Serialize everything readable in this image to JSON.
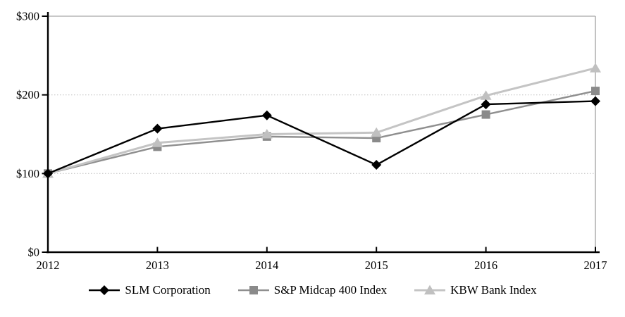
{
  "chart_data": {
    "type": "line",
    "title": "",
    "categories": [
      "2012",
      "2013",
      "2014",
      "2015",
      "2016",
      "2017"
    ],
    "series": [
      {
        "name": "SLM Corporation",
        "marker": "diamond",
        "line_color": "#000000",
        "marker_color": "#000000",
        "line_width": 2.4,
        "values": [
          100,
          157,
          174,
          111,
          188,
          192
        ]
      },
      {
        "name": "S&P Midcap 400 Index",
        "marker": "square",
        "line_color": "#8f8f8f",
        "marker_color": "#8a8a8a",
        "line_width": 2.4,
        "values": [
          100,
          134,
          147,
          145,
          175,
          205
        ]
      },
      {
        "name": "KBW Bank Index",
        "marker": "triangle",
        "line_color": "#c4c4c4",
        "marker_color": "#c0c0c0",
        "line_width": 3,
        "values": [
          100,
          139,
          150,
          152,
          199,
          234
        ]
      }
    ],
    "draw_order": [
      1,
      2,
      0
    ],
    "y_axis": {
      "min": 0,
      "max": 300,
      "ticks": [
        {
          "value": 0,
          "label": "$0"
        },
        {
          "value": 100,
          "label": "$100"
        },
        {
          "value": 200,
          "label": "$200"
        },
        {
          "value": 300,
          "label": "$300"
        }
      ]
    },
    "x_axis": {
      "labels": [
        "2012",
        "2013",
        "2014",
        "2015",
        "2016",
        "2017"
      ]
    },
    "grid": "horizontal-dotted",
    "legend_position": "bottom",
    "colors": {
      "axis": "#000000",
      "gridline": "#c6c6c6",
      "top_border": "#b5b5b5",
      "right_border": "#a8a8a8",
      "background": "#ffffff",
      "label_text": "#000000"
    }
  }
}
